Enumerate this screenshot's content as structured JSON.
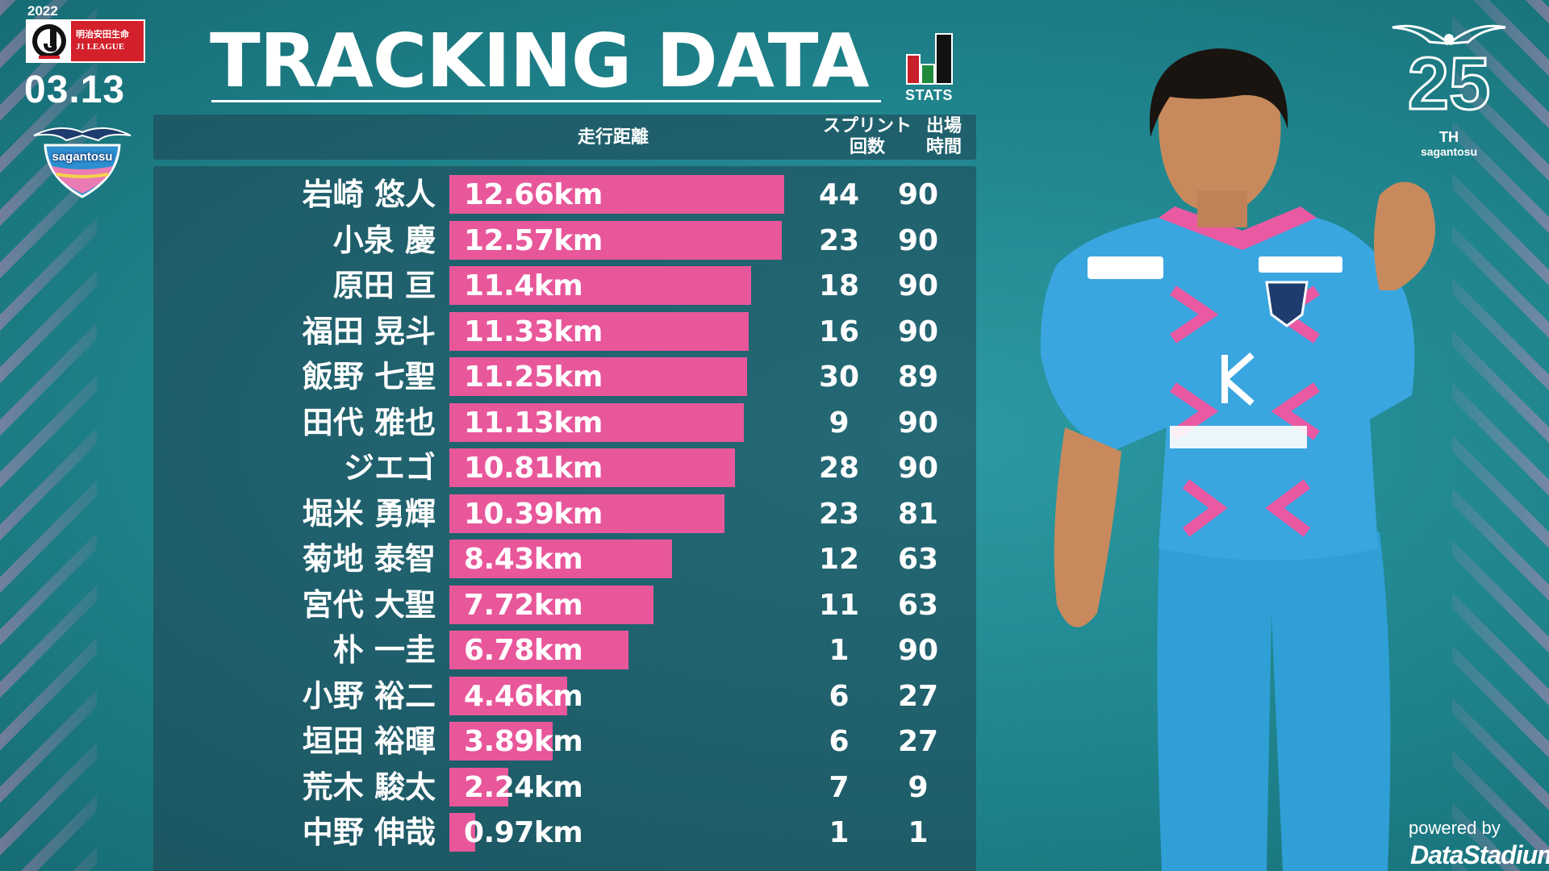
{
  "colors": {
    "background": "#1f838c",
    "panel": "#1f4250",
    "bar": "#e8579a",
    "text": "#ffffff",
    "jleague_red": "#d4202b"
  },
  "header": {
    "year": "2022",
    "league_sponsor": "明治安田生命",
    "league_name": "J1 LEAGUE",
    "date": "03.13",
    "club": "sagantosu",
    "title": "TRACKING DATA",
    "stats_logo_text": "STATS"
  },
  "anniversary_logo": {
    "number": "25",
    "suffix": "TH",
    "club": "sagantosu"
  },
  "footer": {
    "powered_by": "powered by",
    "provider": "DataStadium"
  },
  "chart_data": {
    "type": "bar",
    "orientation": "horizontal",
    "columns": {
      "distance": "走行距離",
      "sprints": "スプリント\n回数",
      "minutes": "出場\n時間"
    },
    "unit": "km",
    "value_range": [
      0,
      12.66
    ],
    "rows": [
      {
        "name": "岩崎 悠人",
        "distance": 12.66,
        "label": "12.66km",
        "sprints": "44",
        "minutes": "90"
      },
      {
        "name": "小泉 慶",
        "distance": 12.57,
        "label": "12.57km",
        "sprints": "23",
        "minutes": "90"
      },
      {
        "name": "原田 亘",
        "distance": 11.4,
        "label": "11.4km",
        "sprints": "18",
        "minutes": "90"
      },
      {
        "name": "福田 晃斗",
        "distance": 11.33,
        "label": "11.33km",
        "sprints": "16",
        "minutes": "90"
      },
      {
        "name": "飯野 七聖",
        "distance": 11.25,
        "label": "11.25km",
        "sprints": "30",
        "minutes": "89"
      },
      {
        "name": "田代 雅也",
        "distance": 11.13,
        "label": "11.13km",
        "sprints": "9",
        "minutes": "90"
      },
      {
        "name": "ジエゴ",
        "distance": 10.81,
        "label": "10.81km",
        "sprints": "28",
        "minutes": "90"
      },
      {
        "name": "堀米 勇輝",
        "distance": 10.39,
        "label": "10.39km",
        "sprints": "23",
        "minutes": "81"
      },
      {
        "name": "菊地 泰智",
        "distance": 8.43,
        "label": "8.43km",
        "sprints": "12",
        "minutes": "63"
      },
      {
        "name": "宮代 大聖",
        "distance": 7.72,
        "label": "7.72km",
        "sprints": "11",
        "minutes": "63"
      },
      {
        "name": "朴 一圭",
        "distance": 6.78,
        "label": "6.78km",
        "sprints": "1",
        "minutes": "90"
      },
      {
        "name": "小野 裕二",
        "distance": 4.46,
        "label": "4.46km",
        "sprints": "6",
        "minutes": "27"
      },
      {
        "name": "垣田 裕暉",
        "distance": 3.89,
        "label": "3.89km",
        "sprints": "6",
        "minutes": "27"
      },
      {
        "name": "荒木 駿太",
        "distance": 2.24,
        "label": "2.24km",
        "sprints": "7",
        "minutes": "9"
      },
      {
        "name": "中野 伸哉",
        "distance": 0.97,
        "label": "0.97km",
        "sprints": "1",
        "minutes": "1"
      }
    ]
  }
}
